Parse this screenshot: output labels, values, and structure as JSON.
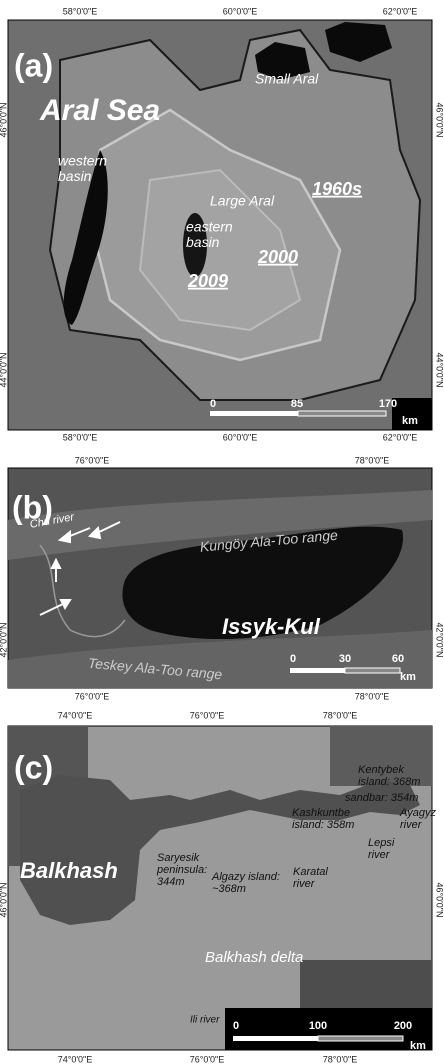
{
  "panels": [
    {
      "label": "(a)",
      "top_coords": [
        "58°0'0\"E",
        "60°0'0\"E",
        "62°0'0\"E"
      ],
      "bottom_coords": [
        "58°0'0\"E",
        "60°0'0\"E",
        "62°0'0\"E"
      ],
      "left_coords": [
        "46°0'0\"N",
        "44°0'0\"N"
      ],
      "right_coords": [
        "46°0'0\"N",
        "44°0'0\"N"
      ],
      "annotations": [
        [
          "Aral Sea"
        ],
        [
          "Small Aral"
        ],
        [
          "western",
          "basin"
        ],
        [
          "Large Aral"
        ],
        [
          "1960s"
        ],
        [
          "eastern",
          "basin"
        ],
        [
          "2000"
        ],
        [
          "2009"
        ]
      ],
      "scale": [
        "0",
        "85",
        "170"
      ],
      "scale_unit": "km"
    },
    {
      "label": "(b)",
      "top_coords": [
        "76°0'0\"E",
        "78°0'0\"E"
      ],
      "bottom_coords": [
        "76°0'0\"E",
        "78°0'0\"E"
      ],
      "left_coords": [
        "42°0'0\"N"
      ],
      "right_coords": [
        "42°0'0\"N"
      ],
      "annotations": [
        [
          "Chu river"
        ],
        [
          "Kungöy Ala-Too range"
        ],
        [
          "Issyk-Kul"
        ],
        [
          "Teskey Ala-Too range"
        ]
      ],
      "scale": [
        "0",
        "30",
        "60"
      ],
      "scale_unit": "km"
    },
    {
      "label": "(c)",
      "top_coords": [
        "74°0'0\"E",
        "76°0'0\"E",
        "78°0'0\"E"
      ],
      "bottom_coords": [
        "74°0'0\"E",
        "76°0'0\"E",
        "78°0'0\"E"
      ],
      "left_coords": [
        "46°0'0\"N"
      ],
      "right_coords": [
        "46°0'0\"N"
      ],
      "annotations": [
        [
          "Balkhash"
        ],
        [
          "Saryesik",
          "peninsula:",
          "344m"
        ],
        [
          "Algazy island:",
          "~368m"
        ],
        [
          "Karatal",
          "river"
        ],
        [
          "Balkhash delta"
        ],
        [
          "Ili river"
        ],
        [
          "Kashkuntbe",
          "island: 358m"
        ],
        [
          "sandbar: 354m"
        ],
        [
          "Kentybek",
          "island: 368m"
        ],
        [
          "Ayagyz",
          "river"
        ],
        [
          "Lepsi",
          "river"
        ]
      ],
      "scale": [
        "0",
        "100",
        "200"
      ],
      "scale_unit": "km"
    }
  ]
}
